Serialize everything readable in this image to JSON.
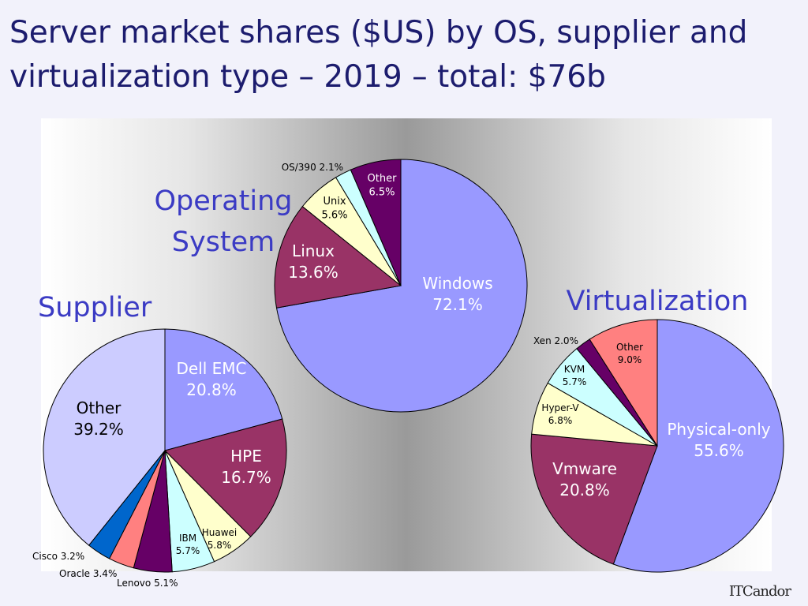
{
  "title": "Server market shares ($US) by OS, supplier and virtualization type – 2019 – total: $76b",
  "logo_text": "ITCandor",
  "chart_data": [
    {
      "type": "pie",
      "title": "Operating System",
      "slices": [
        {
          "label": "Windows",
          "value": 72.1,
          "display": "72.1%",
          "color": "#9999ff"
        },
        {
          "label": "Linux",
          "value": 13.6,
          "display": "13.6%",
          "color": "#993366"
        },
        {
          "label": "Unix",
          "value": 5.6,
          "display": "5.6%",
          "color": "#ffffcc"
        },
        {
          "label": "OS/390",
          "value": 2.1,
          "display": "2.1%",
          "color": "#ccffff"
        },
        {
          "label": "Other",
          "value": 6.5,
          "display": "6.5%",
          "color": "#660066"
        }
      ]
    },
    {
      "type": "pie",
      "title": "Supplier",
      "slices": [
        {
          "label": "Dell EMC",
          "value": 20.8,
          "display": "20.8%",
          "color": "#9999ff"
        },
        {
          "label": "HPE",
          "value": 16.7,
          "display": "16.7%",
          "color": "#993366"
        },
        {
          "label": "Huawei",
          "value": 5.8,
          "display": "5.8%",
          "color": "#ffffcc"
        },
        {
          "label": "IBM",
          "value": 5.7,
          "display": "5.7%",
          "color": "#ccffff"
        },
        {
          "label": "Lenovo",
          "value": 5.1,
          "display": "5.1%",
          "color": "#660066"
        },
        {
          "label": "Oracle",
          "value": 3.4,
          "display": "3.4%",
          "color": "#ff8080"
        },
        {
          "label": "Cisco",
          "value": 3.2,
          "display": "3.2%",
          "color": "#0066cc"
        },
        {
          "label": "Other",
          "value": 39.2,
          "display": "39.2%",
          "color": "#ccccff"
        }
      ]
    },
    {
      "type": "pie",
      "title": "Virtualization",
      "slices": [
        {
          "label": "Physical-only",
          "value": 55.6,
          "display": "55.6%",
          "color": "#9999ff"
        },
        {
          "label": "Vmware",
          "value": 20.8,
          "display": "20.8%",
          "color": "#993366"
        },
        {
          "label": "Hyper-V",
          "value": 6.8,
          "display": "6.8%",
          "color": "#ffffcc"
        },
        {
          "label": "KVM",
          "value": 5.7,
          "display": "5.7%",
          "color": "#ccffff"
        },
        {
          "label": "Xen",
          "value": 2.0,
          "display": "2.0%",
          "color": "#660066"
        },
        {
          "label": "Other",
          "value": 9.0,
          "display": "9.0%",
          "color": "#ff8080"
        }
      ]
    }
  ]
}
